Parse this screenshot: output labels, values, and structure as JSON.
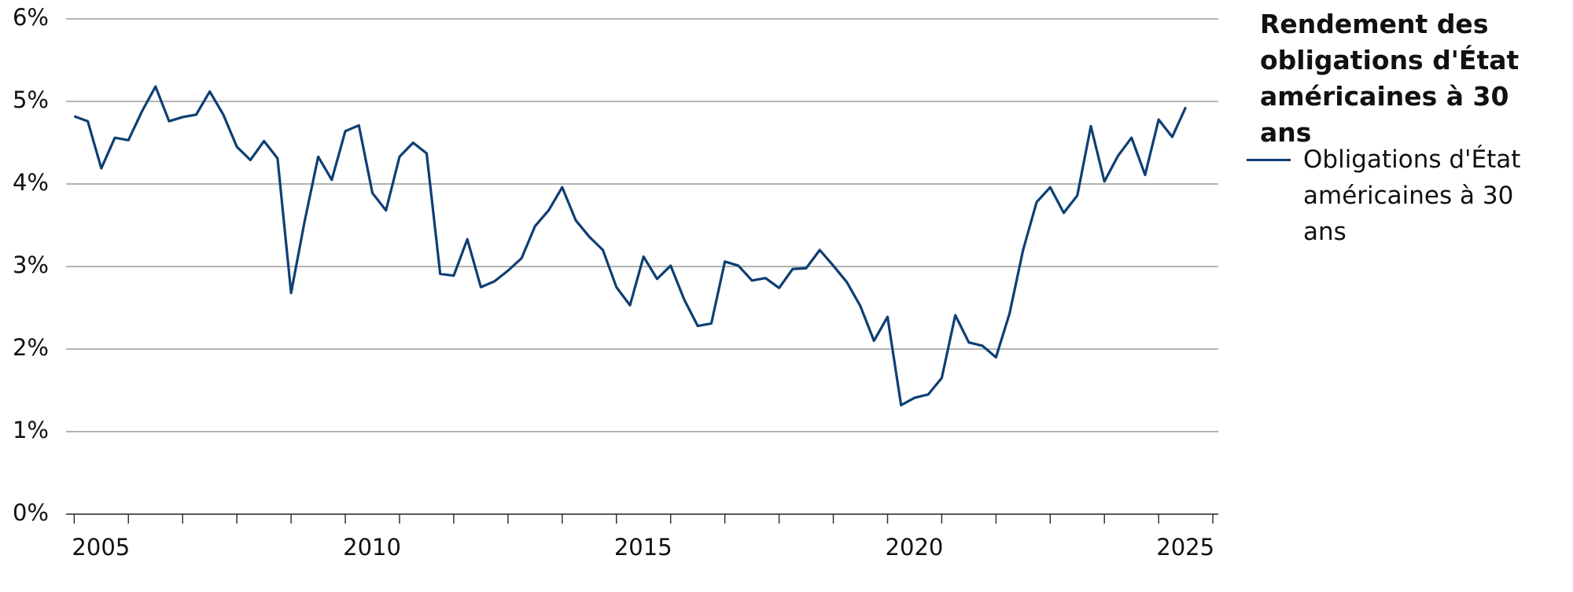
{
  "chart_data": {
    "type": "line",
    "title": "Rendement des obligations d'État américaines à 30 ans",
    "x": [
      2005,
      2005.25,
      2005.5,
      2005.75,
      2006,
      2006.25,
      2006.5,
      2006.75,
      2007,
      2007.25,
      2007.5,
      2007.75,
      2008,
      2008.25,
      2008.5,
      2008.75,
      2009,
      2009.25,
      2009.5,
      2009.75,
      2010,
      2010.25,
      2010.5,
      2010.75,
      2011,
      2011.25,
      2011.5,
      2011.75,
      2012,
      2012.25,
      2012.5,
      2012.75,
      2013,
      2013.25,
      2013.5,
      2013.75,
      2014,
      2014.25,
      2014.5,
      2014.75,
      2015,
      2015.25,
      2015.5,
      2015.75,
      2016,
      2016.25,
      2016.5,
      2016.75,
      2017,
      2017.25,
      2017.5,
      2017.75,
      2018,
      2018.25,
      2018.5,
      2018.75,
      2019,
      2019.25,
      2019.5,
      2019.75,
      2020,
      2020.25,
      2020.5,
      2020.75,
      2021,
      2021.25,
      2021.5,
      2021.75,
      2022,
      2022.25,
      2022.5,
      2022.75,
      2023,
      2023.25,
      2023.5,
      2023.75,
      2024,
      2024.25,
      2024.5,
      2024.75,
      2025,
      2025.25,
      2025.5
    ],
    "series": [
      {
        "name": "Obligations d'État américaines à 30 ans",
        "color": "#0d3f73",
        "values": [
          4.82,
          4.76,
          4.19,
          4.56,
          4.53,
          4.88,
          5.18,
          4.76,
          4.81,
          4.84,
          5.12,
          4.84,
          4.45,
          4.29,
          4.52,
          4.31,
          2.68,
          3.55,
          4.33,
          4.05,
          4.64,
          4.71,
          3.89,
          3.68,
          4.33,
          4.5,
          4.37,
          2.91,
          2.89,
          3.33,
          2.75,
          2.82,
          2.95,
          3.1,
          3.49,
          3.68,
          3.96,
          3.56,
          3.36,
          3.2,
          2.75,
          2.53,
          3.12,
          2.85,
          3.01,
          2.6,
          2.28,
          2.31,
          3.06,
          3.01,
          2.83,
          2.86,
          2.74,
          2.97,
          2.98,
          3.2,
          3.01,
          2.81,
          2.52,
          2.1,
          2.39,
          1.32,
          1.41,
          1.45,
          1.65,
          2.41,
          2.08,
          2.04,
          1.9,
          2.43,
          3.2,
          3.78,
          3.96,
          3.65,
          3.86,
          4.7,
          4.03,
          4.34,
          4.56,
          4.11,
          4.78,
          4.57,
          4.93
        ]
      }
    ],
    "xlim": [
      2004.85,
      2026.1
    ],
    "xticks": [
      2005,
      2010,
      2015,
      2020,
      2025
    ],
    "ylim": [
      0,
      6
    ],
    "yticks": [
      {
        "value": 0,
        "label": "0%"
      },
      {
        "value": 1,
        "label": "1%"
      },
      {
        "value": 2,
        "label": "2%"
      },
      {
        "value": 3,
        "label": "3%"
      },
      {
        "value": 4,
        "label": "4%"
      },
      {
        "value": 5,
        "label": "5%"
      },
      {
        "value": 6,
        "label": "6%"
      }
    ],
    "grid": true
  }
}
